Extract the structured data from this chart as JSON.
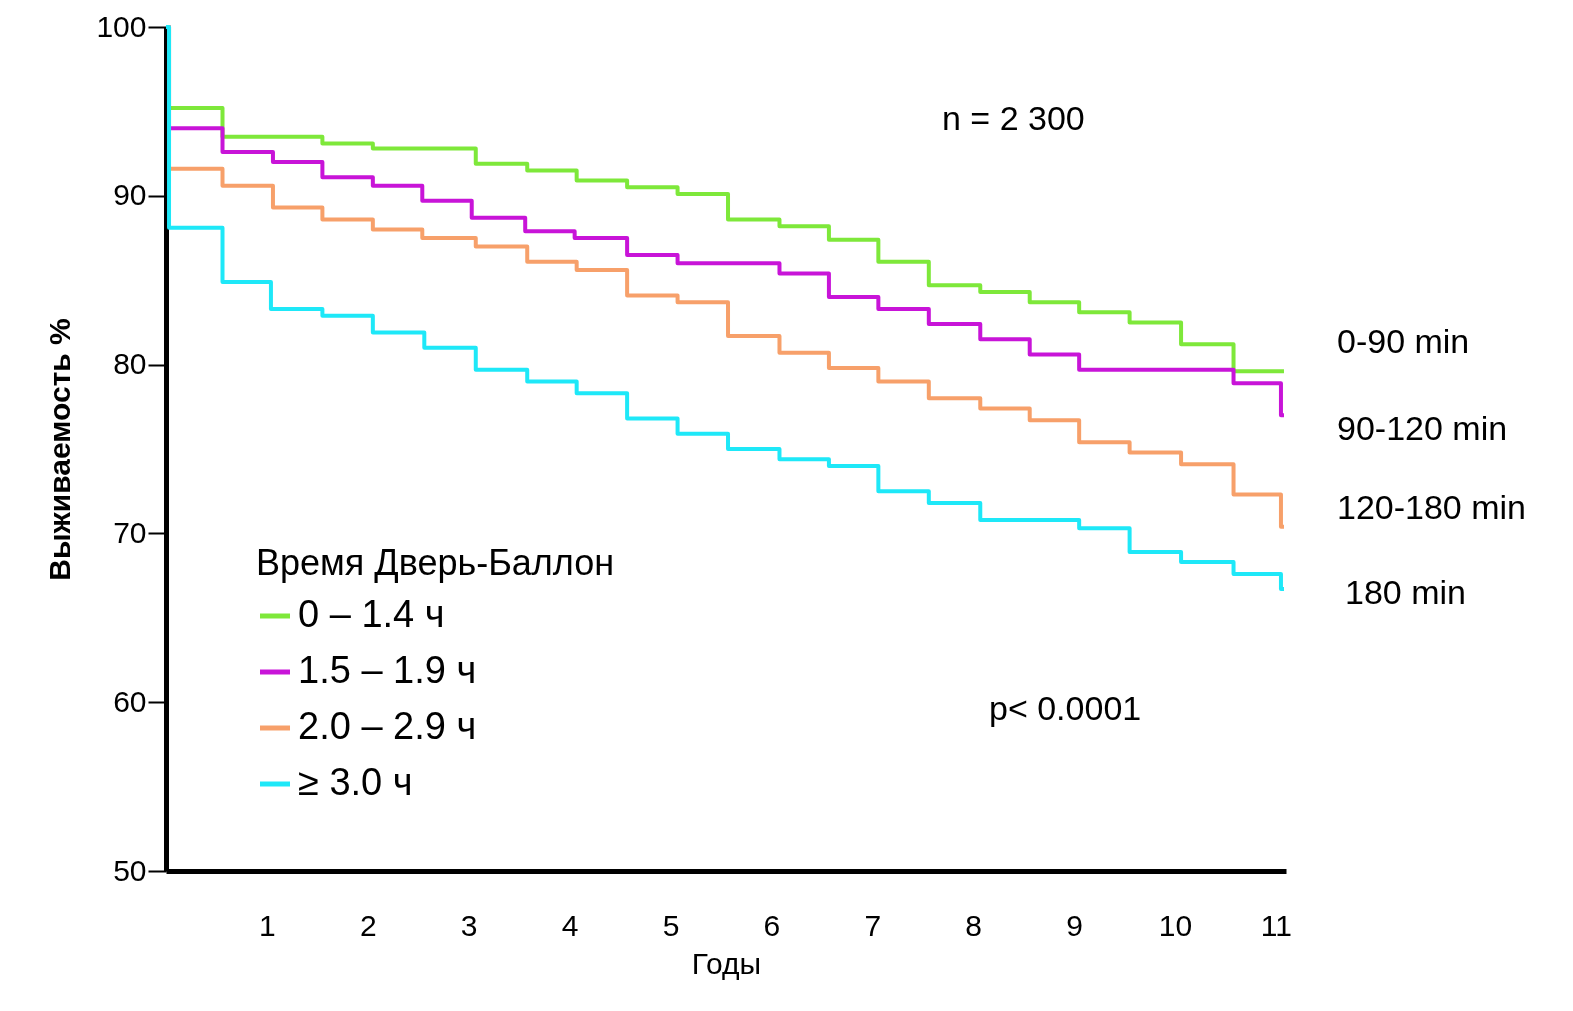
{
  "chart_data": {
    "type": "step",
    "xlabel": "Годы",
    "ylabel": "Выживаемость %",
    "legend_title": "Время Дверь-Баллон",
    "legend": "bottom left",
    "grid": false,
    "xlim": [
      0,
      11.1
    ],
    "xticks": [
      1,
      2,
      3,
      4,
      5,
      6,
      7,
      8,
      9,
      10,
      11
    ],
    "ylim": [
      50,
      100
    ],
    "yticks": [
      50,
      60,
      70,
      80,
      90,
      100
    ],
    "annotations": [
      "n = 2 300",
      "p< 0.0001",
      "0-90 min",
      "90-120 min",
      "120-180 min",
      "180 min"
    ],
    "series": [
      {
        "name": "0 – 1.4 ч",
        "color": "#7ee83a",
        "x": [
          0,
          0.03,
          0.56,
          1.55,
          2.05,
          3.07,
          3.58,
          4.07,
          4.57,
          5.07,
          5.57,
          6.08,
          6.57,
          7.06,
          7.56,
          8.07,
          8.56,
          9.05,
          9.55,
          10.06,
          10.58,
          11.08
        ],
        "values": [
          100,
          95.2,
          93.5,
          93.1,
          92.8,
          91.9,
          91.5,
          90.9,
          90.5,
          90.1,
          88.6,
          88.2,
          87.4,
          86.1,
          84.7,
          84.3,
          83.7,
          83.1,
          82.5,
          81.2,
          79.6,
          79.6
        ]
      },
      {
        "name": "1.5 – 1.9 ч",
        "color": "#c814d8",
        "x": [
          0,
          0.03,
          0.56,
          1.06,
          1.55,
          2.05,
          2.54,
          3.03,
          3.56,
          4.05,
          4.57,
          5.07,
          6.08,
          6.57,
          7.06,
          7.56,
          8.07,
          8.56,
          9.05,
          10.58,
          11.05,
          11.08
        ],
        "values": [
          100,
          94.0,
          92.6,
          92.0,
          91.1,
          90.6,
          89.7,
          88.7,
          87.9,
          87.5,
          86.5,
          86.0,
          85.4,
          84.0,
          83.3,
          82.4,
          81.5,
          80.6,
          79.7,
          78.9,
          77.0,
          77.0
        ]
      },
      {
        "name": "2.0 – 2.9 ч",
        "color": "#f7a06a",
        "x": [
          0,
          0.03,
          0.56,
          1.06,
          1.55,
          2.05,
          2.54,
          3.07,
          3.58,
          4.07,
          4.57,
          5.07,
          5.57,
          6.08,
          6.57,
          7.06,
          7.56,
          8.07,
          8.56,
          9.05,
          9.55,
          10.06,
          10.58,
          11.05,
          11.08
        ],
        "values": [
          100,
          91.6,
          90.6,
          89.3,
          88.6,
          88.0,
          87.5,
          87.0,
          86.1,
          85.6,
          84.1,
          83.7,
          81.7,
          80.7,
          79.8,
          79.0,
          78.0,
          77.4,
          76.7,
          75.4,
          74.8,
          74.1,
          72.3,
          70.4,
          70.4
        ]
      },
      {
        "name": "≥ 3.0 ч",
        "color": "#1ee8f8",
        "x": [
          0,
          0.03,
          0.56,
          1.04,
          1.55,
          2.05,
          2.56,
          3.07,
          3.58,
          4.07,
          4.57,
          5.07,
          5.57,
          6.08,
          6.57,
          7.06,
          7.56,
          8.07,
          9.05,
          9.55,
          10.06,
          10.58,
          11.05,
          11.08
        ],
        "values": [
          100,
          88.1,
          84.9,
          83.3,
          82.9,
          81.9,
          81.0,
          79.7,
          79.0,
          78.3,
          76.8,
          75.9,
          75.0,
          74.4,
          74.0,
          72.5,
          71.8,
          70.8,
          70.3,
          68.9,
          68.3,
          67.6,
          66.7,
          66.7
        ]
      }
    ]
  }
}
